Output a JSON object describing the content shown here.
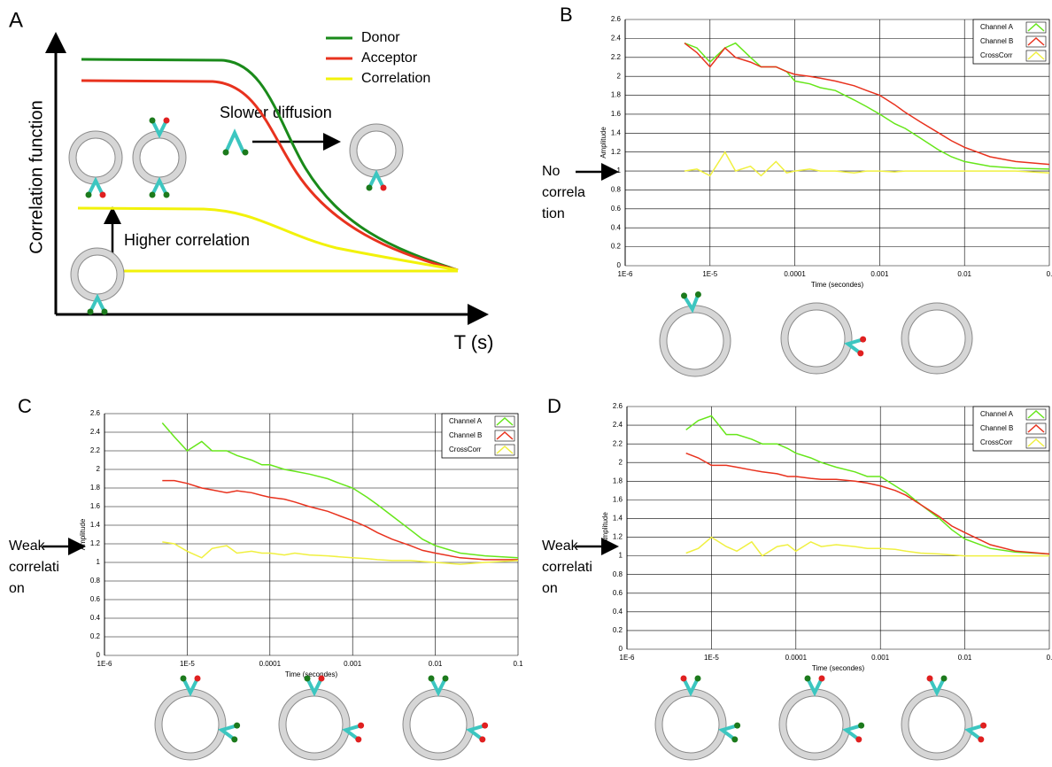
{
  "panel_a": {
    "label": "A",
    "ylabel": "Correlation function",
    "xlabel": "T (s)",
    "legend": [
      {
        "name": "Donor",
        "color": "#1a8a1a"
      },
      {
        "name": "Acceptor",
        "color": "#e8321e"
      },
      {
        "name": "Correlation",
        "color": "#f2f20a"
      }
    ],
    "annotations": [
      "Slower diffusion",
      "Higher correlation"
    ]
  },
  "chart_data": [
    {
      "type": "line",
      "panel": "B",
      "annotation": [
        "No",
        "correla",
        "tion"
      ],
      "xlabel": "Time (secondes)",
      "ylabel": "Amplitude",
      "xlog": true,
      "grid": true,
      "legend": "top-right",
      "xlim": [
        1e-06,
        0.1
      ],
      "xticks": [
        {
          "value": 1e-06,
          "label": "1E-6"
        },
        {
          "value": 1e-05,
          "label": "1E-5"
        },
        0.0001,
        0.001,
        0.01,
        {
          "value": 0.1,
          "label": "0."
        }
      ],
      "ylim": [
        0,
        2.6
      ],
      "yticks": [
        0,
        0.2,
        0.4,
        0.6,
        0.8,
        1,
        1.2,
        1.4,
        1.6,
        1.8,
        2,
        2.2,
        2.4,
        2.6
      ],
      "x": [
        5e-06,
        7e-06,
        1e-05,
        1.5e-05,
        2e-05,
        3e-05,
        4e-05,
        6e-05,
        8e-05,
        0.0001,
        0.00015,
        0.0002,
        0.0003,
        0.0005,
        0.0007,
        0.001,
        0.0015,
        0.002,
        0.003,
        0.005,
        0.007,
        0.01,
        0.02,
        0.04,
        0.1
      ],
      "series": [
        {
          "name": "Channel A",
          "color": "#66e61a",
          "values": [
            2.35,
            2.3,
            2.15,
            2.3,
            2.35,
            2.2,
            2.1,
            2.1,
            2.05,
            1.95,
            1.92,
            1.88,
            1.85,
            1.75,
            1.68,
            1.6,
            1.5,
            1.45,
            1.35,
            1.22,
            1.15,
            1.1,
            1.05,
            1.03,
            1.02
          ]
        },
        {
          "name": "Channel B",
          "color": "#e8321e",
          "values": [
            2.35,
            2.25,
            2.1,
            2.3,
            2.2,
            2.15,
            2.1,
            2.1,
            2.05,
            2.02,
            2.0,
            1.98,
            1.95,
            1.9,
            1.85,
            1.8,
            1.7,
            1.62,
            1.52,
            1.4,
            1.32,
            1.25,
            1.15,
            1.1,
            1.07
          ]
        },
        {
          "name": "CrossCorr",
          "color": "#f0f040",
          "values": [
            1.0,
            1.02,
            0.95,
            1.2,
            1.0,
            1.05,
            0.95,
            1.1,
            0.98,
            1.0,
            1.02,
            1.0,
            1.0,
            0.98,
            1.0,
            1.0,
            0.99,
            1.0,
            1.0,
            1.0,
            1.0,
            1.0,
            1.0,
            1.0,
            0.98
          ]
        }
      ]
    },
    {
      "type": "line",
      "panel": "C",
      "annotation": [
        "Weak",
        "correlati",
        "on"
      ],
      "xlabel": "Time (secondes)",
      "ylabel": "Amplitude",
      "xlog": true,
      "grid": true,
      "legend": "top-right",
      "xlim": [
        1e-06,
        0.1
      ],
      "xticks": [
        {
          "value": 1e-06,
          "label": "1E-6"
        },
        {
          "value": 1e-05,
          "label": "1E-5"
        },
        0.0001,
        0.001,
        0.01,
        0.1
      ],
      "ylim": [
        0,
        2.6
      ],
      "yticks": [
        0,
        0.2,
        0.4,
        0.6,
        0.8,
        1,
        1.2,
        1.4,
        1.6,
        1.8,
        2,
        2.2,
        2.4,
        2.6
      ],
      "x": [
        5e-06,
        7e-06,
        1e-05,
        1.5e-05,
        2e-05,
        3e-05,
        4e-05,
        6e-05,
        8e-05,
        0.0001,
        0.00015,
        0.0002,
        0.0003,
        0.0005,
        0.0007,
        0.001,
        0.0015,
        0.002,
        0.003,
        0.005,
        0.007,
        0.01,
        0.02,
        0.04,
        0.1
      ],
      "series": [
        {
          "name": "Channel A",
          "color": "#66e61a",
          "values": [
            2.5,
            2.35,
            2.2,
            2.3,
            2.2,
            2.2,
            2.15,
            2.1,
            2.05,
            2.05,
            2.0,
            1.98,
            1.95,
            1.9,
            1.85,
            1.8,
            1.7,
            1.62,
            1.5,
            1.35,
            1.25,
            1.18,
            1.1,
            1.07,
            1.05
          ]
        },
        {
          "name": "Channel B",
          "color": "#e8321e",
          "values": [
            1.88,
            1.88,
            1.85,
            1.8,
            1.78,
            1.75,
            1.77,
            1.75,
            1.72,
            1.7,
            1.68,
            1.65,
            1.6,
            1.55,
            1.5,
            1.45,
            1.38,
            1.32,
            1.25,
            1.18,
            1.13,
            1.1,
            1.05,
            1.03,
            1.03
          ]
        },
        {
          "name": "CrossCorr",
          "color": "#f0f040",
          "values": [
            1.22,
            1.2,
            1.12,
            1.05,
            1.15,
            1.18,
            1.1,
            1.12,
            1.1,
            1.1,
            1.08,
            1.1,
            1.08,
            1.07,
            1.06,
            1.05,
            1.04,
            1.03,
            1.02,
            1.02,
            1.01,
            1.0,
            0.98,
            1.0,
            1.02
          ]
        }
      ]
    },
    {
      "type": "line",
      "panel": "D",
      "annotation": [
        "Weak",
        "correlati",
        "on"
      ],
      "xlabel": "Time (secondes)",
      "ylabel": "Amplitude",
      "xlog": true,
      "grid": true,
      "legend": "top-right",
      "xlim": [
        1e-06,
        0.1
      ],
      "xticks": [
        {
          "value": 1e-06,
          "label": "1E-6"
        },
        {
          "value": 1e-05,
          "label": "1E-5"
        },
        0.0001,
        0.001,
        0.01,
        {
          "value": 0.1,
          "label": "0."
        }
      ],
      "ylim": [
        0,
        2.6
      ],
      "yticks": [
        0,
        0.2,
        0.4,
        0.6,
        0.8,
        1,
        1.2,
        1.4,
        1.6,
        1.8,
        2,
        2.2,
        2.4,
        2.6
      ],
      "x": [
        5e-06,
        7e-06,
        1e-05,
        1.5e-05,
        2e-05,
        3e-05,
        4e-05,
        6e-05,
        8e-05,
        0.0001,
        0.00015,
        0.0002,
        0.0003,
        0.0005,
        0.0007,
        0.001,
        0.0015,
        0.002,
        0.003,
        0.005,
        0.007,
        0.01,
        0.02,
        0.04,
        0.1
      ],
      "series": [
        {
          "name": "Channel A",
          "color": "#66e61a",
          "values": [
            2.35,
            2.45,
            2.5,
            2.3,
            2.3,
            2.25,
            2.2,
            2.2,
            2.15,
            2.1,
            2.05,
            2.0,
            1.95,
            1.9,
            1.85,
            1.85,
            1.75,
            1.68,
            1.55,
            1.4,
            1.28,
            1.18,
            1.08,
            1.04,
            1.02
          ]
        },
        {
          "name": "Channel B",
          "color": "#e8321e",
          "values": [
            2.1,
            2.05,
            1.97,
            1.97,
            1.95,
            1.92,
            1.9,
            1.88,
            1.85,
            1.85,
            1.83,
            1.82,
            1.82,
            1.8,
            1.78,
            1.75,
            1.7,
            1.65,
            1.55,
            1.42,
            1.32,
            1.25,
            1.12,
            1.05,
            1.02
          ]
        },
        {
          "name": "CrossCorr",
          "color": "#f0f040",
          "values": [
            1.03,
            1.08,
            1.2,
            1.1,
            1.05,
            1.15,
            1.0,
            1.1,
            1.12,
            1.05,
            1.15,
            1.1,
            1.12,
            1.1,
            1.08,
            1.08,
            1.07,
            1.05,
            1.03,
            1.02,
            1.01,
            1.0,
            1.0,
            1.0,
            1.0
          ]
        }
      ]
    }
  ]
}
